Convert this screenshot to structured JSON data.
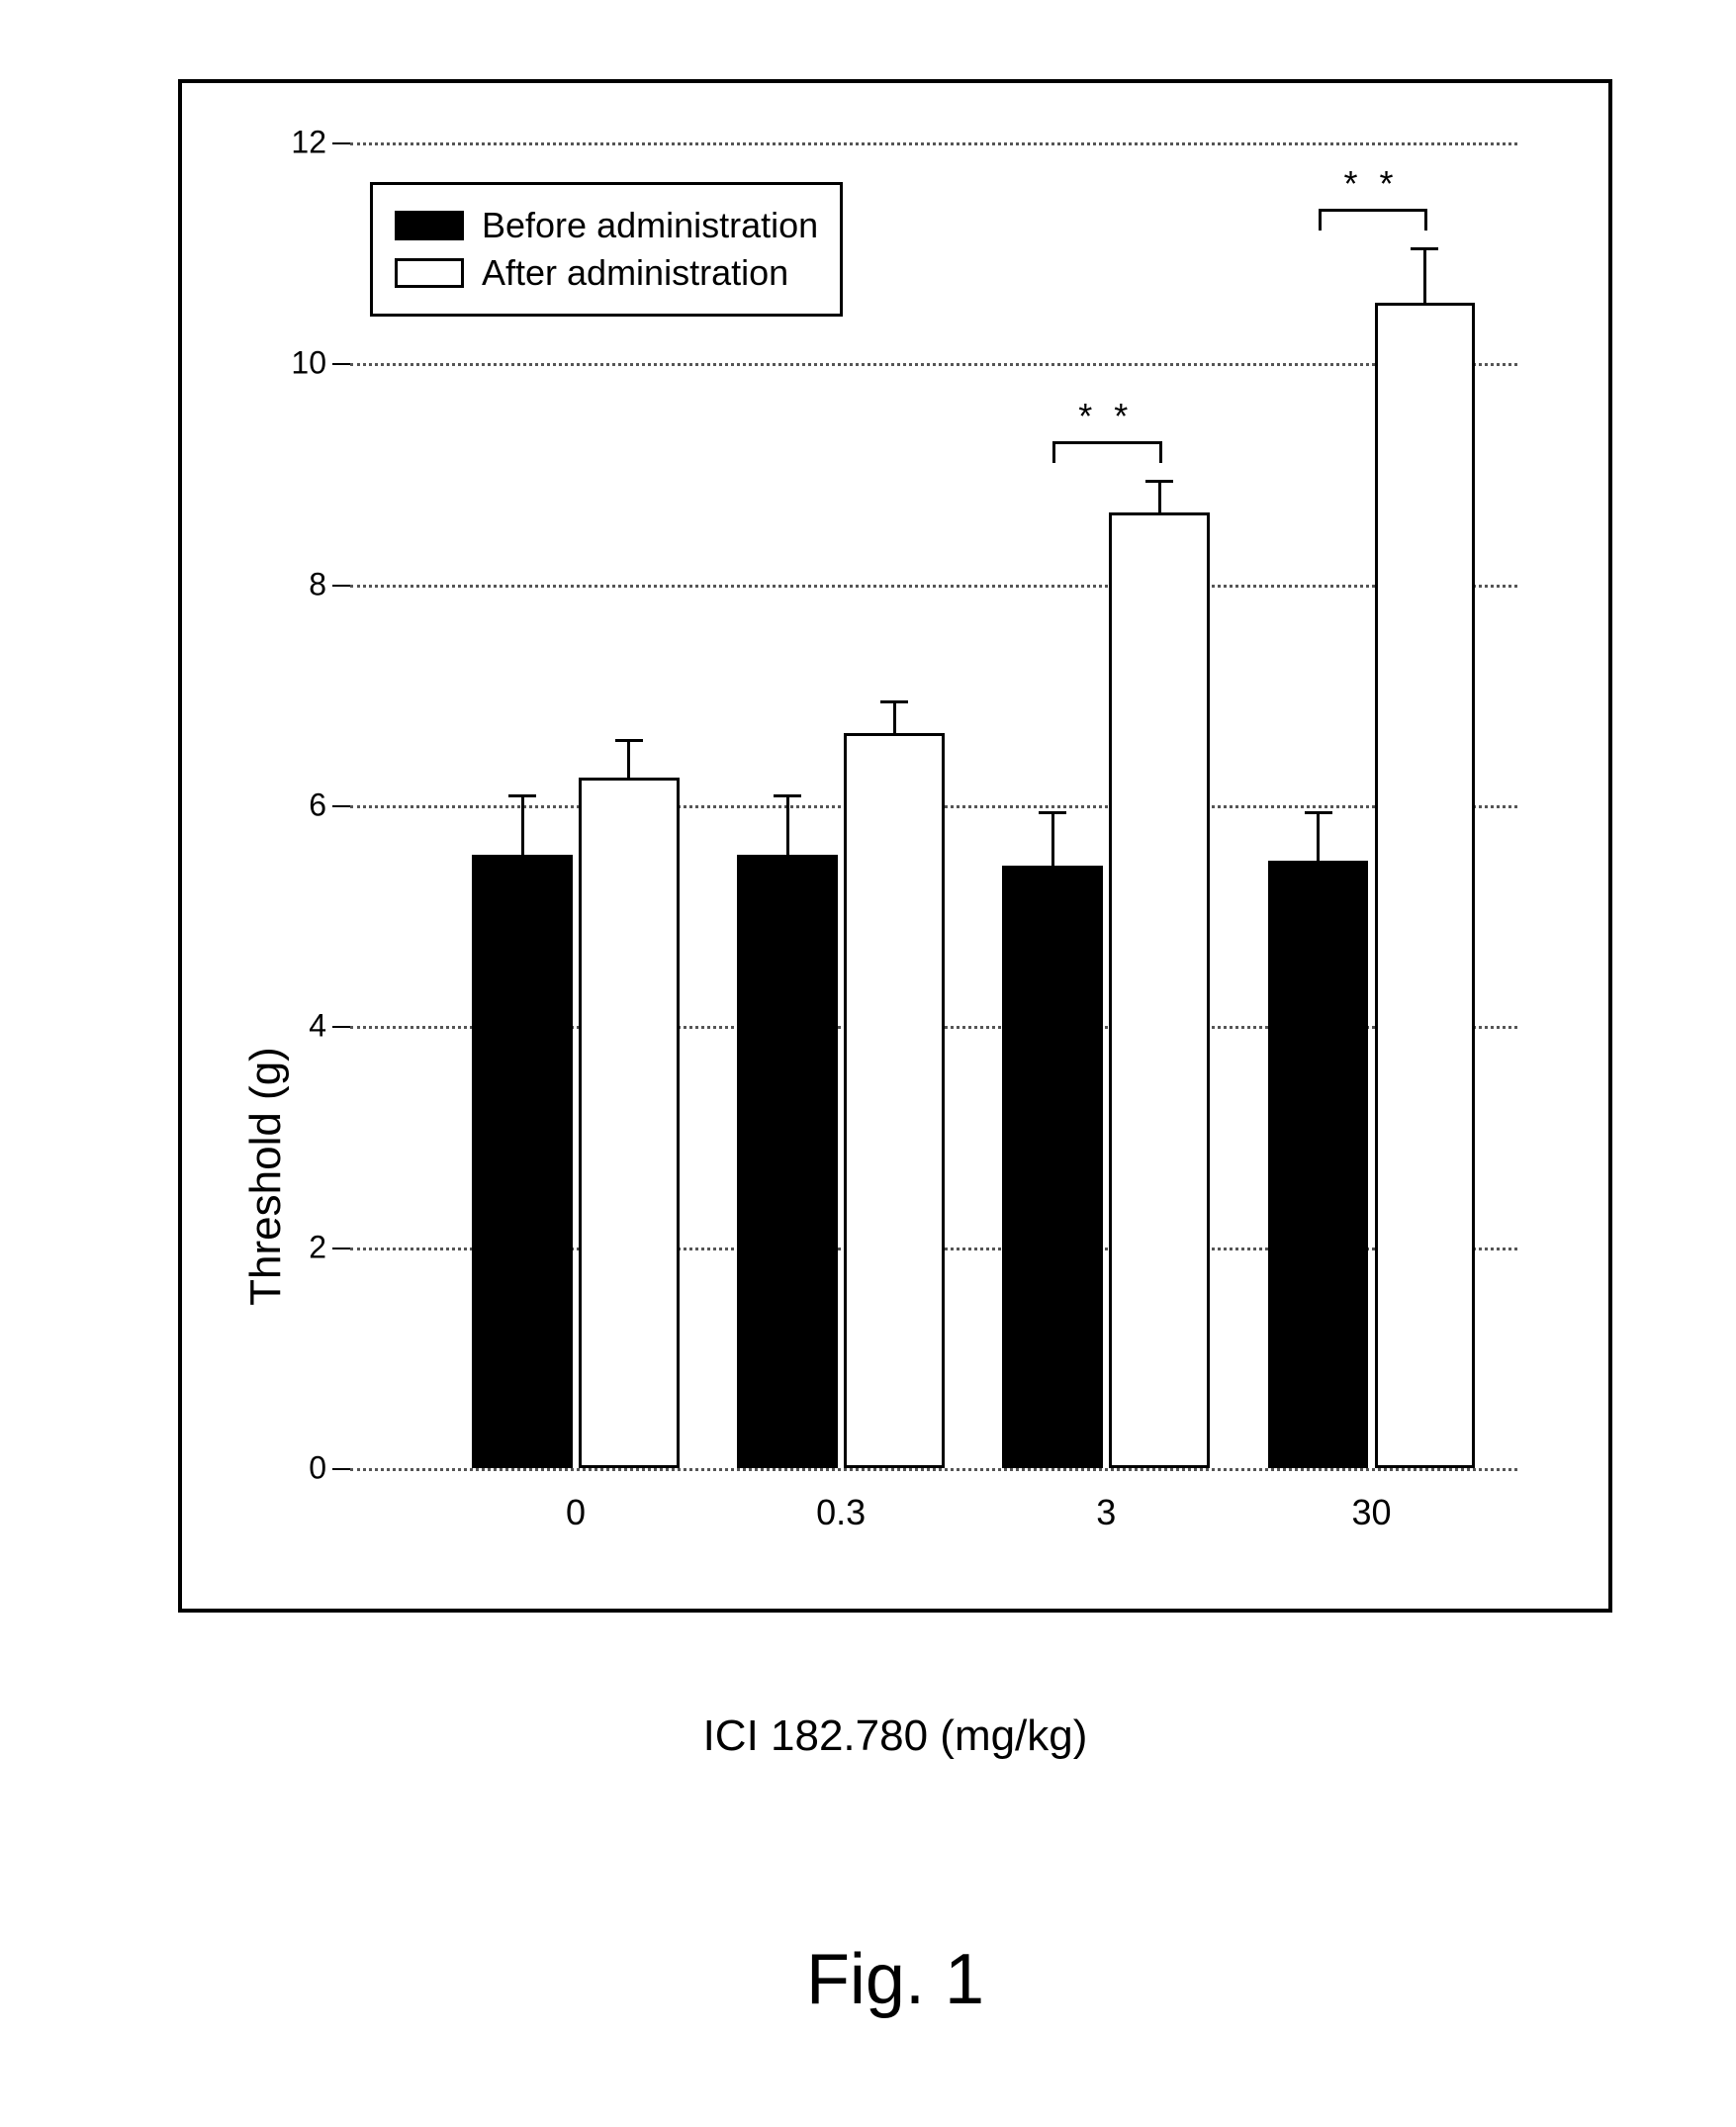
{
  "chart": {
    "type": "bar",
    "title": "",
    "caption": "Fig. 1",
    "xlabel": "ICI 182.780 (mg/kg)",
    "ylabel": "Threshold (g)",
    "categories": [
      "0",
      "0.3",
      "3",
      "30"
    ],
    "ylim": [
      0,
      12
    ],
    "ytick_step": 2,
    "yticks": [
      0,
      2,
      4,
      6,
      8,
      10,
      12
    ],
    "grid_on": true,
    "grid_style": "dotted",
    "grid_color": "#555555",
    "background_color": "#ffffff",
    "axis_color": "#000000",
    "axis_width": 4,
    "bar_width": 0.38,
    "bar_border_color": "#000000",
    "bar_border_width": 3,
    "label_fontsize": 44,
    "tick_fontsize": 32,
    "legend": {
      "position": "upper-left",
      "items": [
        {
          "label": "Before administration",
          "color": "#000000"
        },
        {
          "label": "After administration",
          "color": "#ffffff"
        }
      ],
      "fontsize": 36,
      "border_color": "#000000",
      "background_color": "#ffffff"
    },
    "series": [
      {
        "name": "Before administration",
        "color": "#000000",
        "values": [
          5.55,
          5.55,
          5.45,
          5.5
        ],
        "errors": [
          0.55,
          0.55,
          0.5,
          0.45
        ]
      },
      {
        "name": "After administration",
        "color": "#ffffff",
        "values": [
          6.25,
          6.65,
          8.65,
          10.55
        ],
        "errors": [
          0.35,
          0.3,
          0.3,
          0.5
        ]
      }
    ],
    "significance": [
      {
        "category_index": 2,
        "label": "* *",
        "y": 9.3
      },
      {
        "category_index": 3,
        "label": "* *",
        "y": 11.4
      }
    ],
    "caption_fontsize": 72
  }
}
